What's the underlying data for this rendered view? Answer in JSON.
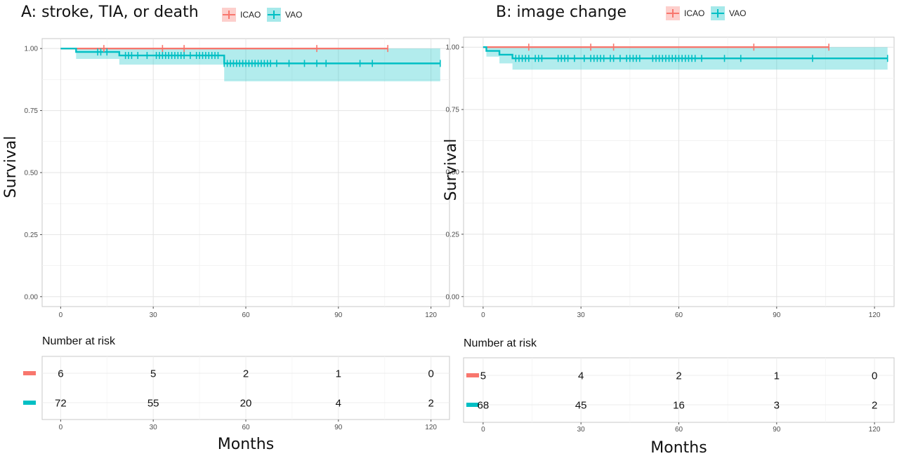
{
  "chart_data": [
    {
      "type": "line",
      "subtype": "kaplan-meier",
      "title": "A: stroke, TIA, or death",
      "xlabel": "Months",
      "ylabel": "Survival",
      "xlim": [
        -6,
        126
      ],
      "ylim": [
        -0.04,
        1.04
      ],
      "xticks": [
        "0",
        "30",
        "60",
        "90",
        "120"
      ],
      "yticks": [
        "0.00",
        "0.25",
        "0.50",
        "0.75",
        "1.00"
      ],
      "grid": true,
      "legend_position": "top",
      "series": [
        {
          "name": "ICAO",
          "color": "#f8766d",
          "steps": [
            [
              0,
              1.0
            ],
            [
              106,
              1.0
            ]
          ],
          "censor_times": [
            14,
            33,
            40,
            83,
            106
          ],
          "ci": null
        },
        {
          "name": "VAO",
          "color": "#00bfc4",
          "steps": [
            [
              0,
              1.0
            ],
            [
              5,
              0.986
            ],
            [
              19,
              0.972
            ],
            [
              53,
              0.94
            ],
            [
              123,
              0.94
            ]
          ],
          "censor_times": [
            12,
            13,
            15,
            21,
            22,
            23,
            25,
            28,
            31,
            32,
            33,
            34,
            35,
            36,
            37,
            38,
            39,
            40,
            42,
            44,
            45,
            46,
            47,
            48,
            49,
            50,
            51,
            53,
            54,
            55,
            56,
            57,
            58,
            59,
            60,
            61,
            62,
            63,
            64,
            65,
            66,
            67,
            68,
            70,
            74,
            79,
            83,
            86,
            97,
            101,
            123
          ],
          "ci": [
            [
              0,
              1.0,
              1.0
            ],
            [
              5,
              0.958,
              1.0
            ],
            [
              19,
              0.935,
              1.0
            ],
            [
              53,
              0.868,
              1.0
            ],
            [
              123,
              0.868,
              1.0
            ]
          ]
        }
      ],
      "risk_table": {
        "title": "Number at risk",
        "times": [
          "0",
          "30",
          "60",
          "90",
          "120"
        ],
        "rows": [
          {
            "name": "ICAO",
            "values": [
              "6",
              "5",
              "2",
              "1",
              "0"
            ]
          },
          {
            "name": "VAO",
            "values": [
              "72",
              "55",
              "20",
              "4",
              "2"
            ]
          }
        ]
      }
    },
    {
      "type": "line",
      "subtype": "kaplan-meier",
      "title": "B: image change",
      "xlabel": "Months",
      "ylabel": "Survival",
      "xlim": [
        -6,
        126
      ],
      "ylim": [
        -0.04,
        1.04
      ],
      "xticks": [
        "0",
        "30",
        "60",
        "90",
        "120"
      ],
      "yticks": [
        "0.00",
        "0.25",
        "0.50",
        "0.75",
        "1.00"
      ],
      "grid": true,
      "legend_position": "top",
      "series": [
        {
          "name": "ICAO",
          "color": "#f8766d",
          "steps": [
            [
              0,
              1.0
            ],
            [
              106,
              1.0
            ]
          ],
          "censor_times": [
            14,
            33,
            40,
            83,
            106
          ],
          "ci": null
        },
        {
          "name": "VAO",
          "color": "#00bfc4",
          "steps": [
            [
              0,
              1.0
            ],
            [
              1,
              0.985
            ],
            [
              5,
              0.97
            ],
            [
              9,
              0.955
            ],
            [
              124,
              0.955
            ]
          ],
          "censor_times": [
            10,
            11,
            12,
            13,
            14,
            16,
            17,
            18,
            23,
            24,
            25,
            26,
            28,
            31,
            33,
            34,
            35,
            36,
            37,
            39,
            40,
            42,
            44,
            45,
            46,
            47,
            48,
            52,
            53,
            54,
            55,
            56,
            57,
            58,
            59,
            60,
            61,
            62,
            63,
            64,
            65,
            67,
            74,
            79,
            101,
            124
          ],
          "ci": [
            [
              0,
              1.0,
              1.0
            ],
            [
              1,
              0.962,
              1.0
            ],
            [
              5,
              0.935,
              1.0
            ],
            [
              9,
              0.91,
              1.0
            ],
            [
              124,
              0.91,
              1.0
            ]
          ]
        }
      ],
      "risk_table": {
        "title": "Number at risk",
        "times": [
          "0",
          "30",
          "60",
          "90",
          "120"
        ],
        "rows": [
          {
            "name": "ICAO",
            "values": [
              "5",
              "4",
              "2",
              "1",
              "0"
            ]
          },
          {
            "name": "VAO",
            "values": [
              "68",
              "45",
              "16",
              "3",
              "2"
            ]
          }
        ]
      }
    }
  ]
}
